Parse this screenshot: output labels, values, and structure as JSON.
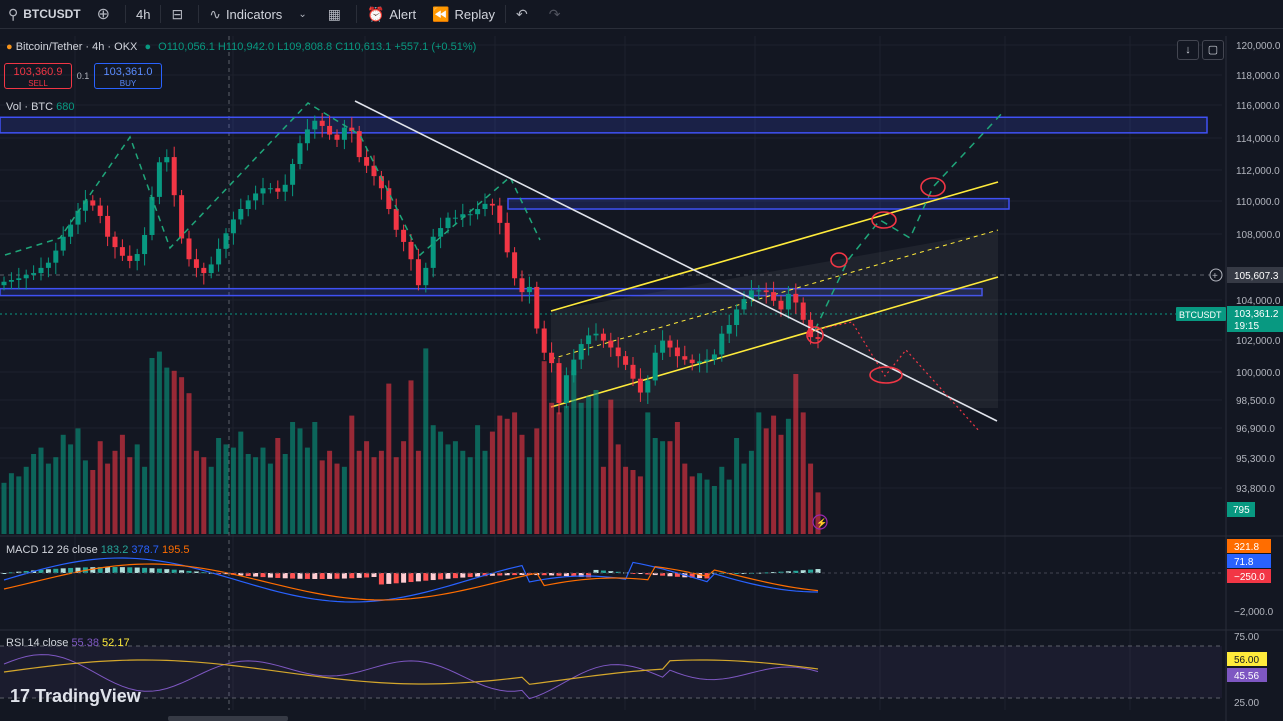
{
  "toolbar": {
    "symbol": "BTCUSDT",
    "interval": "4h",
    "indicators_label": "Indicators",
    "alert_label": "Alert",
    "replay_label": "Replay",
    "icons": [
      "search-icon",
      "add-symbol-icon",
      "bar-style-icon",
      "indicators-icon",
      "chevron-down-icon",
      "layout-icon",
      "alert-icon",
      "replay-icon",
      "undo-icon",
      "redo-icon"
    ]
  },
  "legend": {
    "pair": "Bitcoin/Tether · 4h · OKX",
    "open": "O110,056.1",
    "high": "H110,942.0",
    "low": "L109,808.8",
    "close": "C110,613.1",
    "change": "+557.1 (+0.51%)"
  },
  "trade": {
    "sell_price": "103,360.9",
    "sell_label": "SELL",
    "spread": "0.1",
    "buy_price": "103,361.0",
    "buy_label": "BUY"
  },
  "volume_label": {
    "name": "Vol · BTC",
    "value": "680"
  },
  "macd_label": {
    "name": "MACD 12 26 close",
    "v1": "183.2",
    "v2": "378.7",
    "v3": "195.5"
  },
  "rsi_label": {
    "name": "RSI 14 close",
    "v1": "55.38",
    "v2": "52.17"
  },
  "price_axis": [
    "120,000.0",
    "118,000.0",
    "116,000.0",
    "114,000.0",
    "112,000.0",
    "110,000.0",
    "108,000.0",
    "104,000.0",
    "102,000.0",
    "100,000.0",
    "98,500.0",
    "96,900.0",
    "95,300.0",
    "93,800.0"
  ],
  "crosshair_price": "105,607.3",
  "last_price": {
    "symbol": "BTCUSDT",
    "price": "103,361.2",
    "countdown": "19:15"
  },
  "volume_tag": "795",
  "macd_axis": [
    "321.8",
    "71.8",
    "−250.0",
    "−2,000.0"
  ],
  "rsi_axis": [
    "75.00",
    "56.00",
    "45.56",
    "25.00"
  ],
  "brand": "TradingView",
  "colors": {
    "up": "#089981",
    "down": "#f23645",
    "zone": "#3f51f5",
    "channel": "#ffeb3b",
    "projection": "#1fa67a",
    "bear_path": "#f23645"
  },
  "chart_data": {
    "type": "candlestick",
    "symbol": "BTCUSDT",
    "interval": "4h",
    "ohlc_legend": {
      "open": 110056.1,
      "high": 110942.0,
      "low": 109808.8,
      "close": 110613.1
    },
    "y_ticks": [
      120000,
      118000,
      116000,
      114000,
      112000,
      110000,
      108000,
      104000,
      102000,
      100000,
      98500,
      96900,
      95300,
      93800
    ],
    "last_price": 103361.2,
    "crosshair_price": 105607.3,
    "closes": [
      106600,
      106700,
      106800,
      107000,
      107100,
      107400,
      107700,
      108400,
      109200,
      109900,
      110700,
      111300,
      111000,
      110400,
      109200,
      108600,
      108100,
      107800,
      108200,
      109300,
      111500,
      113500,
      113800,
      111600,
      109100,
      107900,
      107400,
      107100,
      107600,
      108500,
      109400,
      110200,
      110800,
      111300,
      111700,
      112000,
      112000,
      111800,
      112200,
      113400,
      114600,
      115400,
      115900,
      115600,
      115100,
      114800,
      115500,
      115300,
      113800,
      113300,
      112700,
      112000,
      110800,
      109600,
      108900,
      107900,
      106400,
      107400,
      109200,
      109700,
      110300,
      110300,
      110500,
      110500,
      110800,
      111100,
      111000,
      110000,
      108300,
      106800,
      106000,
      106300,
      103900,
      102500,
      101900,
      99600,
      101200,
      102100,
      103000,
      103500,
      103600,
      103200,
      102800,
      102300,
      101800,
      101000,
      100200,
      100900,
      102500,
      103200,
      102800,
      102300,
      102100,
      101900,
      102000,
      102100,
      102400,
      103600,
      104100,
      105000,
      105600,
      106100,
      106100,
      106000,
      105500,
      105000,
      105900,
      105400,
      104400,
      103400,
      103300
    ],
    "volume": [
      16,
      19,
      18,
      21,
      25,
      27,
      22,
      24,
      31,
      28,
      33,
      23,
      20,
      29,
      22,
      26,
      31,
      24,
      28,
      21,
      55,
      57,
      52,
      51,
      49,
      44,
      26,
      24,
      21,
      30,
      28,
      27,
      32,
      25,
      24,
      27,
      22,
      30,
      25,
      35,
      33,
      27,
      35,
      23,
      26,
      22,
      21,
      37,
      26,
      29,
      24,
      26,
      47,
      24,
      29,
      48,
      26,
      58,
      34,
      32,
      28,
      29,
      26,
      24,
      34,
      26,
      32,
      37,
      36,
      38,
      31,
      24,
      33,
      54,
      41,
      38,
      40,
      51,
      41,
      43,
      45,
      21,
      42,
      28,
      21,
      20,
      18,
      38,
      30,
      29,
      29,
      35,
      22,
      18,
      19,
      17,
      15,
      21,
      17,
      30,
      22,
      26,
      38,
      33,
      37,
      31,
      36,
      50,
      38,
      22,
      13
    ],
    "channel_yellow": {
      "upper": [
        [
          0.09,
          103500
        ],
        [
          1.0,
          111300
        ]
      ],
      "lower": [
        [
          0.09,
          98800
        ],
        [
          1.0,
          105700
        ]
      ],
      "mid": [
        [
          0.09,
          101900
        ],
        [
          1.0,
          108300
        ]
      ]
    },
    "zones": [
      {
        "from": 115200,
        "to": 116100
      },
      {
        "from": 110800,
        "to": 111400
      },
      {
        "from": 105800,
        "to": 106200
      }
    ],
    "indicators": {
      "macd": {
        "fast": 12,
        "slow": 26,
        "macd": 183.2,
        "signal": 378.7,
        "hist": 195.5
      },
      "rsi": {
        "period": 14,
        "value": 55.38,
        "ma": 52.17
      }
    }
  }
}
